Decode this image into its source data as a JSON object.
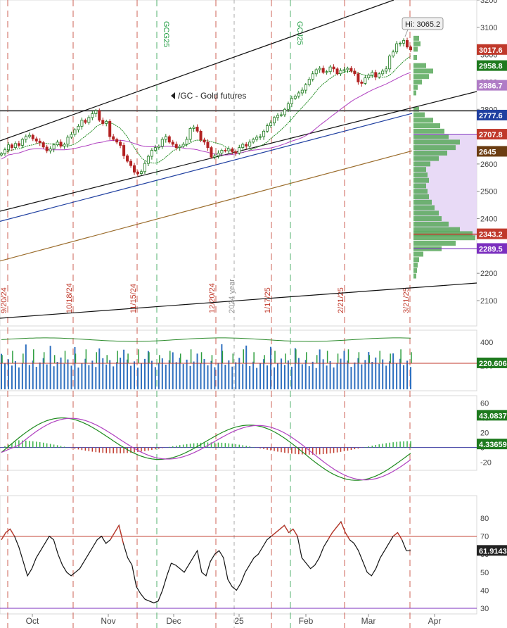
{
  "chart_data": [
    {
      "type": "candlestick",
      "symbol_label": "/GC - Gold futures",
      "hi_label": "Hi: 3065.2",
      "ylim": [
        2050,
        3200
      ],
      "y_ticks": [
        3200,
        3100,
        3000,
        2900,
        2800,
        2700,
        2600,
        2500,
        2400,
        2300,
        2200,
        2100
      ],
      "price_tags": [
        {
          "label": "3017.6",
          "value": 3017.6,
          "color": "#c0392b"
        },
        {
          "label": "2958.8",
          "value": 2958.8,
          "color": "#1e7a1e"
        },
        {
          "label": "2886.7",
          "value": 2886.7,
          "color": "#b07cc6"
        },
        {
          "label": "2777.6",
          "value": 2777.6,
          "color": "#1f3fa0"
        },
        {
          "label": "2707.8",
          "value": 2707.8,
          "color": "#c0392b"
        },
        {
          "label": "2645",
          "value": 2645,
          "color": "#6b3d12"
        },
        {
          "label": "2343.2",
          "value": 2343.2,
          "color": "#c0392b"
        },
        {
          "label": "2289.5",
          "value": 2289.5,
          "color": "#7b2fbf"
        }
      ],
      "horizontal_line": 2795,
      "x_axis_labels": [
        "Oct",
        "Nov",
        "Dec",
        "25",
        "Feb",
        "Mar",
        "Apr"
      ],
      "red_event_lines": [
        "9/20/24",
        "10/18/24",
        "11/15/24",
        "12/20/24",
        "1/17/25",
        "2/21/25",
        "3/21/25"
      ],
      "green_event_lines": [
        "GCG25",
        "GCJ25"
      ],
      "year_marker": "2024 year",
      "closes": [
        2638,
        2652,
        2670,
        2660,
        2675,
        2668,
        2690,
        2700,
        2705,
        2692,
        2684,
        2678,
        2662,
        2648,
        2655,
        2670,
        2680,
        2665,
        2672,
        2698,
        2708,
        2725,
        2738,
        2760,
        2752,
        2770,
        2784,
        2795,
        2760,
        2748,
        2756,
        2700,
        2690,
        2680,
        2668,
        2630,
        2610,
        2594,
        2570,
        2565,
        2572,
        2602,
        2628,
        2650,
        2660,
        2665,
        2690,
        2700,
        2680,
        2672,
        2660,
        2665,
        2672,
        2690,
        2730,
        2735,
        2720,
        2688,
        2680,
        2660,
        2625,
        2630,
        2640,
        2650,
        2648,
        2655,
        2645,
        2640,
        2660,
        2672,
        2665,
        2680,
        2690,
        2698,
        2700,
        2720,
        2740,
        2750,
        2770,
        2778,
        2780,
        2800,
        2820,
        2840,
        2848,
        2860,
        2870,
        2890,
        2910,
        2930,
        2945,
        2950,
        2935,
        2938,
        2955,
        2948,
        2930,
        2942,
        2945,
        2950,
        2940,
        2930,
        2900,
        2895,
        2915,
        2925,
        2935,
        2918,
        2930,
        2940,
        2948,
        2995,
        3010,
        3040,
        3042,
        3052,
        3028,
        3017.6
      ]
    },
    {
      "type": "volume",
      "y_ticks": [
        400,
        200
      ],
      "value_label": "220.606",
      "value": 220.606
    },
    {
      "type": "macd",
      "y_ticks": [
        60,
        40,
        20,
        0,
        -20
      ],
      "line_label": "43.0837",
      "histogram_label": "4.33659"
    },
    {
      "type": "rsi",
      "y_ticks": [
        80,
        70,
        60,
        50,
        40,
        30
      ],
      "value_label": "61.9143",
      "overbought": 70,
      "oversold": 30,
      "values": [
        68,
        72,
        74,
        70,
        64,
        56,
        48,
        52,
        58,
        62,
        66,
        70,
        68,
        60,
        54,
        50,
        48,
        50,
        52,
        56,
        60,
        64,
        68,
        70,
        66,
        68,
        72,
        76,
        66,
        58,
        54,
        42,
        38,
        35,
        34,
        33,
        34,
        40,
        48,
        55,
        54,
        52,
        50,
        54,
        58,
        62,
        50,
        48,
        56,
        60,
        62,
        58,
        46,
        42,
        40,
        44,
        50,
        54,
        58,
        60,
        64,
        68,
        70,
        72,
        74,
        76,
        72,
        74,
        70,
        58,
        55,
        52,
        54,
        58,
        64,
        68,
        72,
        75,
        78,
        72,
        68,
        66,
        62,
        56,
        50,
        48,
        52,
        58,
        62,
        66,
        70,
        72,
        68,
        62,
        61.9
      ]
    }
  ]
}
